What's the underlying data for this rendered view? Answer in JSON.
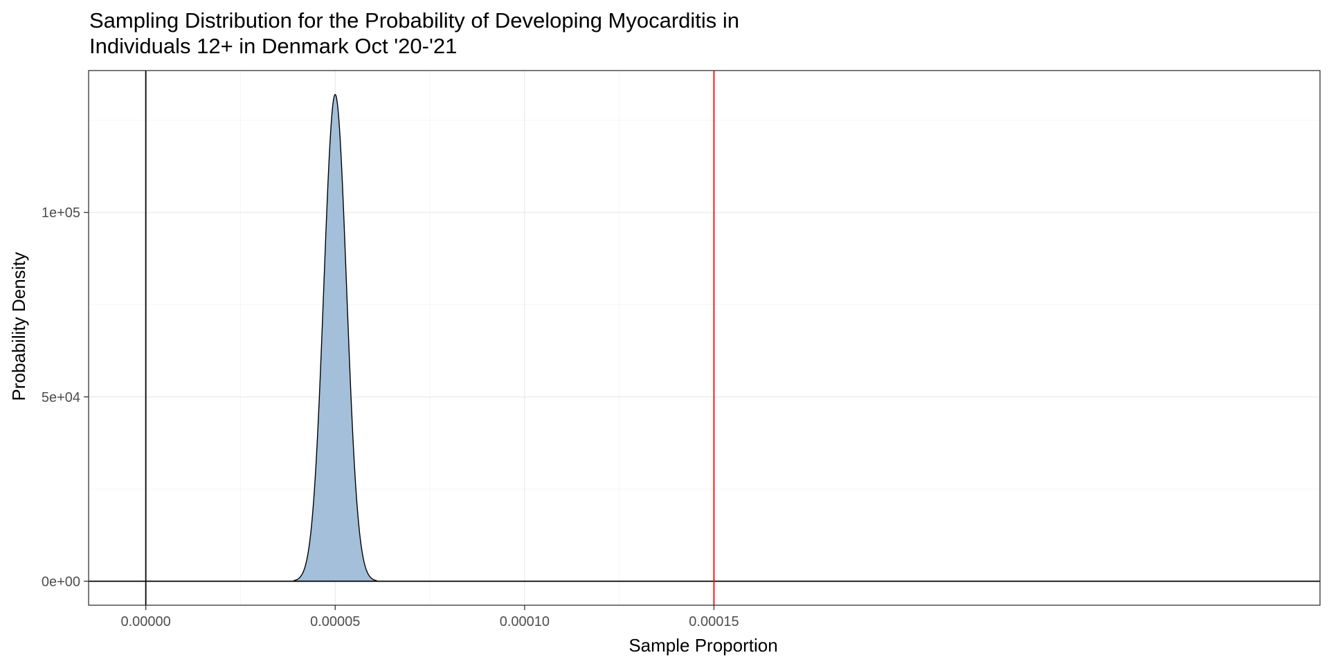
{
  "chart_data": {
    "type": "area",
    "title_lines": [
      "Sampling Distribution for the Probability of Developing Myocarditis in",
      "Individuals 12+ in Denmark Oct '20-'21"
    ],
    "xlabel": "Sample Proportion",
    "ylabel": "Probability Density",
    "xlim": [
      -1.51e-05,
      0.00031
    ],
    "ylim": [
      -6500,
      138500
    ],
    "x_ticks": [
      {
        "value": 0.0,
        "label": "0.00000"
      },
      {
        "value": 5e-05,
        "label": "0.00005"
      },
      {
        "value": 0.0001,
        "label": "0.00010"
      },
      {
        "value": 0.00015,
        "label": "0.00015"
      }
    ],
    "x_minor_ticks": [
      2.5e-05,
      7.5e-05,
      0.000125
    ],
    "y_ticks": [
      {
        "value": 0,
        "label": "0e+00"
      },
      {
        "value": 50000,
        "label": "5e+04"
      },
      {
        "value": 100000,
        "label": "1e+05"
      }
    ],
    "y_minor_ticks": [
      25000,
      75000,
      125000
    ],
    "grid": true,
    "series": [
      {
        "kind": "density",
        "mean": 5e-05,
        "sd": 3e-06,
        "peak": 132000,
        "x_range": [
          3.9e-05,
          6.1e-05
        ],
        "fill": "#a3bfd9",
        "stroke": "#000000"
      }
    ],
    "reference_lines": [
      {
        "orientation": "vertical",
        "value": 0.0,
        "color": "#000000"
      },
      {
        "orientation": "horizontal",
        "value": 0,
        "color": "#000000"
      },
      {
        "orientation": "vertical",
        "value": 0.00015,
        "color": "#ff0000"
      }
    ],
    "colors": {
      "panel_border": "#333333",
      "grid_major": "#ebebeb",
      "grid_minor": "#f5f5f5",
      "density_fill": "#a3bfd9"
    }
  }
}
